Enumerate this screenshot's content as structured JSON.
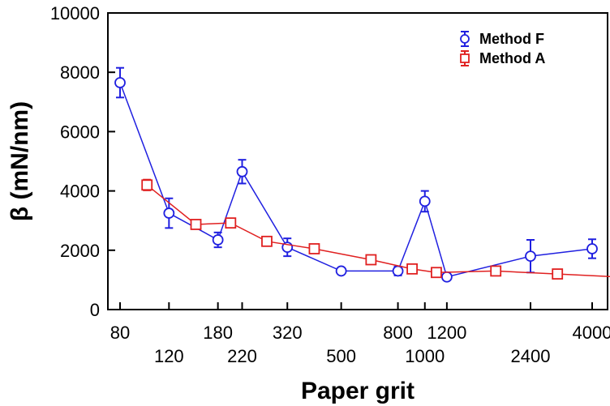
{
  "chart_data": {
    "type": "line",
    "title": "",
    "xlabel": "Paper grit",
    "ylabel": "β (mN/nm)",
    "ylim": [
      0,
      10000
    ],
    "y_ticks": [
      "0",
      "2000",
      "4000",
      "6000",
      "8000",
      "10000"
    ],
    "x_ticks_top": [
      "80",
      "180",
      "320",
      "800",
      "1200",
      "4000"
    ],
    "x_ticks_bottom": [
      "120",
      "220",
      "500",
      "1000",
      "2400"
    ],
    "legend_position": "top-right",
    "grid": false,
    "series": [
      {
        "name": "Method F",
        "color": "#2020e0",
        "marker": "circle",
        "x": [
          80,
          120,
          180,
          220,
          320,
          500,
          800,
          1000,
          1200,
          2400,
          4000
        ],
        "values": [
          7650,
          3250,
          2350,
          4650,
          2100,
          1300,
          1300,
          3650,
          1100,
          1800,
          2050
        ],
        "error": [
          500,
          500,
          250,
          400,
          300,
          0,
          150,
          350,
          100,
          550,
          320
        ]
      },
      {
        "name": "Method A",
        "color": "#e02020",
        "marker": "square",
        "x": [
          100,
          150,
          200,
          270,
          400,
          640,
          900,
          1100,
          1800,
          3000,
          5000
        ],
        "values": [
          4200,
          2870,
          2920,
          2300,
          2050,
          1680,
          1370,
          1250,
          1300,
          1200,
          1100
        ],
        "error": [
          180,
          0,
          0,
          0,
          0,
          0,
          0,
          0,
          0,
          0,
          0
        ]
      }
    ]
  }
}
